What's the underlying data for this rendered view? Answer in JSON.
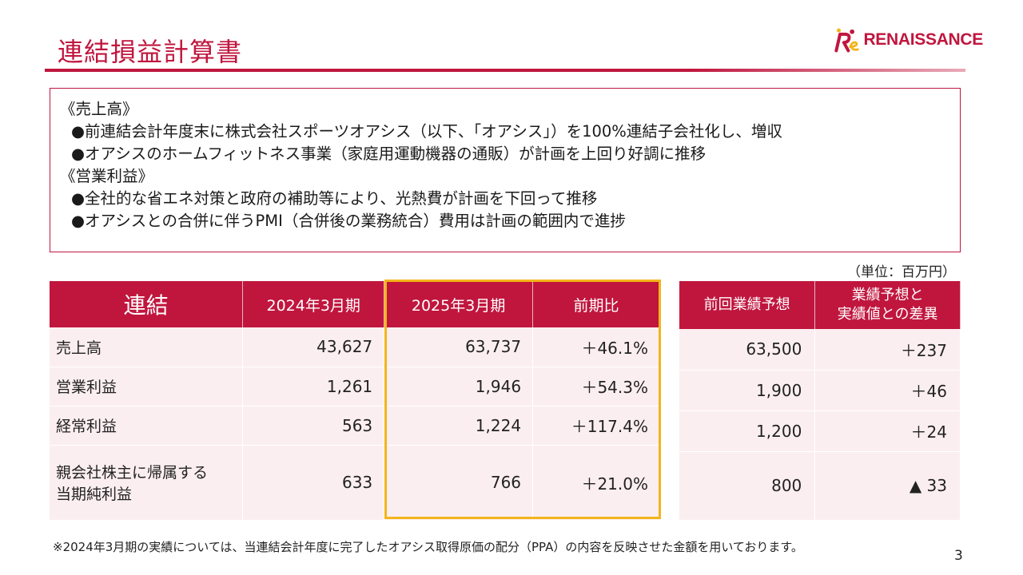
{
  "slide": {
    "title": "連結損益計算書",
    "page_number": "3"
  },
  "logo": {
    "text": "RENAISSANCE",
    "mark_text": "Re",
    "brand_color": "#c0163e",
    "accent_color": "#f2b51a"
  },
  "summary": {
    "lines": [
      "《売上高》",
      "●前連結会計年度末に株式会社スポーツオアシス（以下、「オアシス」）を100%連結子会社化し、増収",
      "●オアシスのホームフィットネス事業（家庭用運動機器の通販）が計画を上回り好調に推移",
      "《営業利益》",
      "●全社的な省エネ対策と政府の補助等により、光熱費が計画を下回って推移",
      "●オアシスとの合併に伴うPMI（合併後の業務統合）費用は計画の範囲内で進捗"
    ]
  },
  "unit_label": "（単位：百万円）",
  "main_table": {
    "headers": [
      "連結",
      "2024年3月期",
      "2025年3月期",
      "前期比"
    ],
    "rows": [
      {
        "label": "売上高",
        "fy2024": "43,627",
        "fy2025": "63,737",
        "yoy": "＋46.1%"
      },
      {
        "label": "営業利益",
        "fy2024": "1,261",
        "fy2025": "1,946",
        "yoy": "＋54.3%"
      },
      {
        "label": "経常利益",
        "fy2024": "563",
        "fy2025": "1,224",
        "yoy": "＋117.4%"
      },
      {
        "label_line1": "親会社株主に帰属する",
        "label_line2": "当期純利益",
        "fy2024": "633",
        "fy2025": "766",
        "yoy": "＋21.0%"
      }
    ]
  },
  "side_table": {
    "headers": [
      "前回業績予想",
      "業績予想と",
      "実績値との差異"
    ],
    "rows": [
      {
        "forecast": "63,500",
        "diff": "＋237"
      },
      {
        "forecast": "1,900",
        "diff": "＋46"
      },
      {
        "forecast": "1,200",
        "diff": "＋24"
      },
      {
        "forecast": "800",
        "diff": "▲ 33"
      }
    ]
  },
  "footnote": "※2024年3月期の実績については、当連結会計年度に完了したオアシス取得原価の配分（PPA）の内容を反映させた金額を用いております。"
}
